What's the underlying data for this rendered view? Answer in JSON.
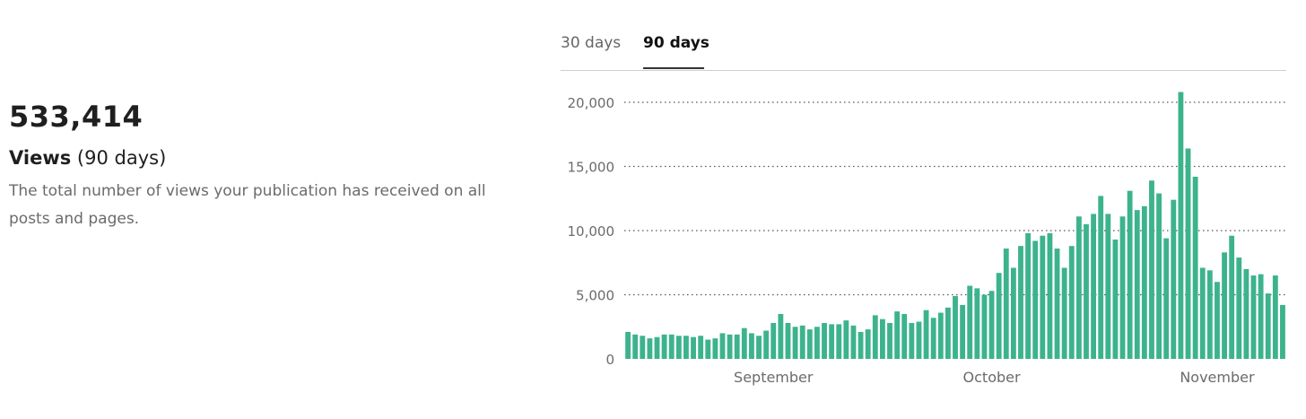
{
  "summary": {
    "total": "533,414",
    "metric": "Views",
    "period": "(90 days)",
    "description": "The total number of views your publication has received on all posts and pages."
  },
  "tabs": [
    {
      "label": "30 days",
      "active": false
    },
    {
      "label": "90 days",
      "active": true
    }
  ],
  "colors": {
    "bar": "#3db38d",
    "grid": "#555555",
    "active_tab_underline": "#333333"
  },
  "chart_data": {
    "type": "bar",
    "title": "",
    "xlabel": "",
    "ylabel": "",
    "ylim": [
      0,
      20000
    ],
    "y_ticks": [
      {
        "value": 0,
        "label": "0"
      },
      {
        "value": 5000,
        "label": "5,000"
      },
      {
        "value": 10000,
        "label": "10,000"
      },
      {
        "value": 15000,
        "label": "15,000"
      },
      {
        "value": 20000,
        "label": "20,000"
      }
    ],
    "grid": true,
    "x_month_labels": [
      {
        "label": "September",
        "day_index": 20
      },
      {
        "label": "October",
        "day_index": 50
      },
      {
        "label": "November",
        "day_index": 81
      }
    ],
    "values": [
      2100,
      1900,
      1800,
      1600,
      1700,
      1900,
      1900,
      1800,
      1800,
      1700,
      1800,
      1500,
      1600,
      2000,
      1900,
      1900,
      2400,
      2000,
      1800,
      2200,
      2800,
      3500,
      2800,
      2500,
      2600,
      2300,
      2500,
      2800,
      2700,
      2700,
      3000,
      2600,
      2100,
      2300,
      3400,
      3100,
      2800,
      3700,
      3500,
      2800,
      2900,
      3800,
      3200,
      3600,
      4000,
      4900,
      4200,
      5700,
      5500,
      5000,
      5300,
      6700,
      8600,
      7100,
      8800,
      9800,
      9200,
      9600,
      9800,
      8600,
      7100,
      8800,
      11100,
      10500,
      11300,
      12700,
      11300,
      9300,
      11100,
      13100,
      11600,
      11900,
      13900,
      12900,
      9400,
      12400,
      20800,
      16400,
      14200,
      7100,
      6900,
      6000,
      8300,
      9600,
      7900,
      7000,
      6500,
      6600,
      5100,
      6500,
      4200
    ]
  }
}
